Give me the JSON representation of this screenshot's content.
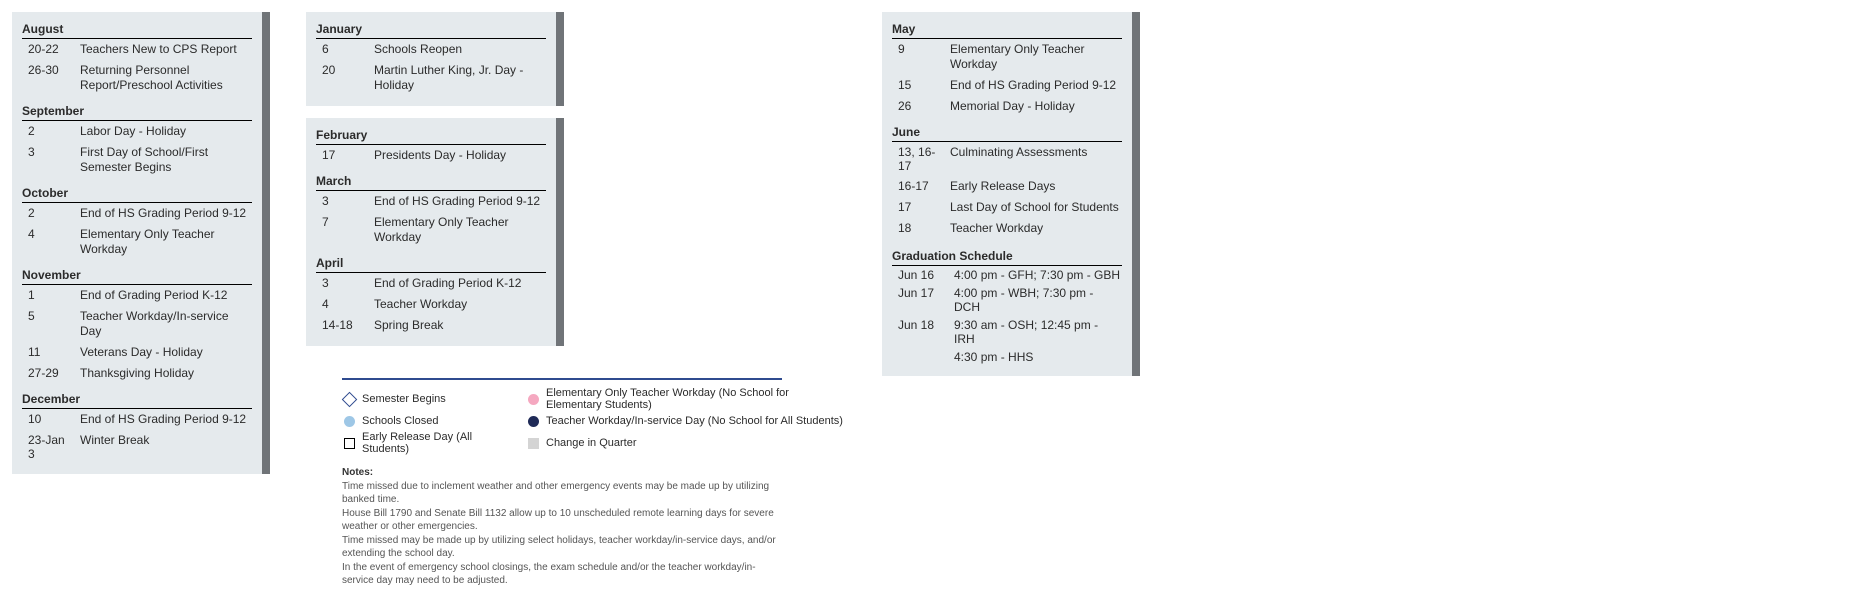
{
  "columns": [
    {
      "panels": [
        {
          "border": true,
          "months": [
            {
              "name": "August",
              "events": [
                {
                  "date": "20-22",
                  "desc": "Teachers New to CPS Report"
                },
                {
                  "date": "26-30",
                  "desc": "Returning Personnel Report/Preschool Activities"
                }
              ]
            },
            {
              "name": "September",
              "events": [
                {
                  "date": "2",
                  "desc": "Labor Day - Holiday"
                },
                {
                  "date": "3",
                  "desc": "First Day of School/First Semester Begins"
                }
              ]
            },
            {
              "name": "October",
              "events": [
                {
                  "date": "2",
                  "desc": "End of HS Grading Period 9-12"
                },
                {
                  "date": "4",
                  "desc": "Elementary Only Teacher Workday"
                }
              ]
            },
            {
              "name": "November",
              "events": [
                {
                  "date": "1",
                  "desc": "End of Grading Period K-12"
                },
                {
                  "date": "5",
                  "desc": "Teacher Workday/In-service Day"
                },
                {
                  "date": "11",
                  "desc": "Veterans Day - Holiday"
                },
                {
                  "date": "27-29",
                  "desc": "Thanksgiving Holiday"
                }
              ]
            },
            {
              "name": "December",
              "events": [
                {
                  "date": "10",
                  "desc": "End of HS Grading Period 9-12"
                },
                {
                  "date": "23-Jan 3",
                  "desc": "Winter Break"
                }
              ]
            }
          ]
        }
      ]
    },
    {
      "panels": [
        {
          "border": true,
          "months": [
            {
              "name": "January",
              "events": [
                {
                  "date": "6",
                  "desc": "Schools Reopen"
                },
                {
                  "date": "20",
                  "desc": "Martin Luther King, Jr. Day - Holiday"
                }
              ]
            }
          ]
        },
        {
          "border": true,
          "months": [
            {
              "name": "February",
              "events": [
                {
                  "date": "17",
                  "desc": "Presidents Day - Holiday"
                }
              ]
            },
            {
              "name": "March",
              "events": [
                {
                  "date": "3",
                  "desc": "End of HS Grading Period 9-12"
                },
                {
                  "date": "7",
                  "desc": "Elementary Only Teacher Workday"
                }
              ]
            },
            {
              "name": "April",
              "events": [
                {
                  "date": "3",
                  "desc": "End of Grading Period K-12"
                },
                {
                  "date": "4",
                  "desc": "Teacher Workday"
                },
                {
                  "date": "14-18",
                  "desc": "Spring Break"
                }
              ]
            }
          ]
        }
      ]
    },
    {
      "panels": [
        {
          "border": true,
          "months": [
            {
              "name": "May",
              "events": [
                {
                  "date": "9",
                  "desc": "Elementary Only Teacher Workday"
                },
                {
                  "date": "15",
                  "desc": "End of HS Grading Period 9-12"
                },
                {
                  "date": "26",
                  "desc": "Memorial Day - Holiday"
                }
              ]
            },
            {
              "name": "June",
              "events": [
                {
                  "date": "13, 16-17",
                  "desc": "Culminating Assessments"
                },
                {
                  "date": "16-17",
                  "desc": "Early Release Days"
                },
                {
                  "date": "17",
                  "desc": "Last Day of School for Students"
                },
                {
                  "date": "18",
                  "desc": "Teacher Workday"
                }
              ]
            }
          ],
          "gradSchedule": {
            "title": "Graduation Schedule",
            "rows": [
              {
                "date": "Jun 16",
                "desc": "4:00 pm - GFH; 7:30 pm - GBH"
              },
              {
                "date": "Jun 17",
                "desc": "4:00 pm - WBH; 7:30 pm - DCH"
              },
              {
                "date": "Jun 18",
                "desc": "9:30 am - OSH; 12:45 pm - IRH"
              },
              {
                "date": "",
                "desc": "4:30 pm - HHS"
              }
            ]
          }
        }
      ]
    }
  ],
  "legend": {
    "items": [
      {
        "sym": "diamond-open",
        "label": "Semester Begins"
      },
      {
        "sym": "circle c-pink",
        "label": "Elementary Only Teacher Workday (No School for Elementary Students)"
      },
      {
        "sym": "circle c-lightblue",
        "label": "Schools Closed"
      },
      {
        "sym": "circle c-navy",
        "label": "Teacher Workday/In-service Day (No School for All Students)"
      },
      {
        "sym": "square-open",
        "label": "Early Release Day (All Students)"
      },
      {
        "sym": "square-grey",
        "label": "Change in Quarter"
      }
    ]
  },
  "notes": {
    "title": "Notes:",
    "lines": [
      "Time missed due to inclement weather and other emergency events may be made up by utilizing banked time.",
      "House Bill 1790 and Senate Bill 1132 allow up to 10 unscheduled remote learning days for severe weather or other emergencies.",
      "Time missed may be made up by utilizing select holidays, teacher workday/in-service days, and/or extending the school day.",
      "In the event of emergency school closings, the exam schedule and/or the teacher workday/in-service day may need to be adjusted."
    ]
  }
}
